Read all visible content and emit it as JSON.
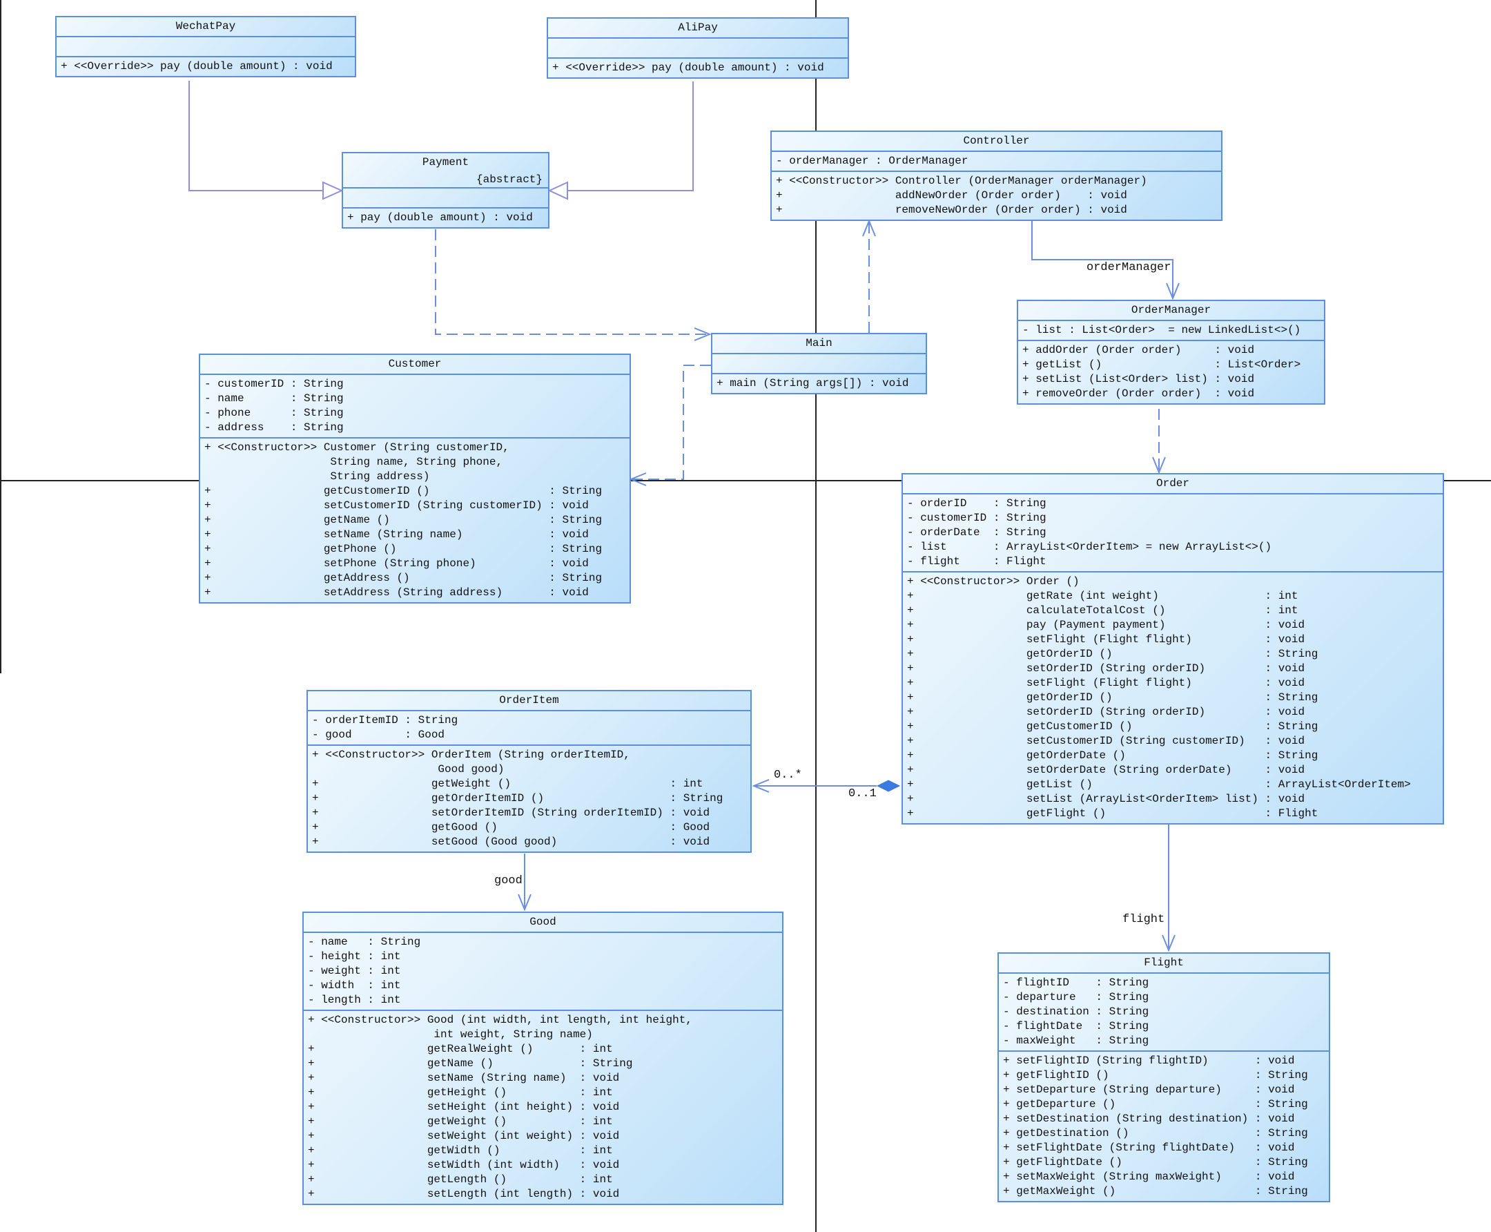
{
  "classes": {
    "wechatpay": {
      "name": "WechatPay",
      "attributes": [],
      "operations": [
        {
          "vis": "+",
          "stereo": "<<Override>>",
          "sig": "pay (double amount)",
          "ret": "void"
        }
      ]
    },
    "alipay": {
      "name": "AliPay",
      "attributes": [],
      "operations": [
        {
          "vis": "+",
          "stereo": "<<Override>>",
          "sig": "pay (double amount)",
          "ret": "void"
        }
      ]
    },
    "payment": {
      "name": "Payment",
      "stereotype": "{abstract}",
      "attributes": [],
      "operations": [
        {
          "vis": "+",
          "stereo": "",
          "sig": "pay (double amount)",
          "ret": "void"
        }
      ]
    },
    "controller": {
      "name": "Controller",
      "attributes": [
        {
          "vis": "-",
          "name": "orderManager",
          "type": "OrderManager"
        }
      ],
      "operations": [
        {
          "vis": "+",
          "stereo": "<<Constructor>>",
          "sig": "Controller (OrderManager orderManager)",
          "ret": ""
        },
        {
          "vis": "+",
          "stereo": "",
          "sig": "addNewOrder (Order order)",
          "ret": "void"
        },
        {
          "vis": "+",
          "stereo": "",
          "sig": "removeNewOrder (Order order)",
          "ret": "void"
        }
      ]
    },
    "ordermanager": {
      "name": "OrderManager",
      "attributes": [
        {
          "vis": "-",
          "name": "list",
          "type": "List<Order>  = new LinkedList<>()"
        }
      ],
      "operations": [
        {
          "vis": "+",
          "stereo": "",
          "sig": "addOrder (Order order)",
          "ret": "void"
        },
        {
          "vis": "+",
          "stereo": "",
          "sig": "getList ()",
          "ret": "List<Order>"
        },
        {
          "vis": "+",
          "stereo": "",
          "sig": "setList (List<Order> list)",
          "ret": "void"
        },
        {
          "vis": "+",
          "stereo": "",
          "sig": "removeOrder (Order order)",
          "ret": "void"
        }
      ]
    },
    "main": {
      "name": "Main",
      "attributes": [],
      "operations": [
        {
          "vis": "+",
          "stereo": "",
          "sig": "main (String args[])",
          "ret": "void"
        }
      ]
    },
    "customer": {
      "name": "Customer",
      "attributes": [
        {
          "vis": "-",
          "name": "customerID",
          "type": "String"
        },
        {
          "vis": "-",
          "name": "name",
          "type": "String"
        },
        {
          "vis": "-",
          "name": "phone",
          "type": "String"
        },
        {
          "vis": "-",
          "name": "address",
          "type": "String"
        }
      ],
      "operations": [
        {
          "vis": "+",
          "stereo": "<<Constructor>>",
          "sig": "Customer (String customerID,",
          "ret": ""
        },
        {
          "vis": "",
          "stereo": "",
          "sig": " String name, String phone,",
          "ret": ""
        },
        {
          "vis": "",
          "stereo": "",
          "sig": " String address)",
          "ret": ""
        },
        {
          "vis": "+",
          "stereo": "",
          "sig": "getCustomerID ()",
          "ret": "String"
        },
        {
          "vis": "+",
          "stereo": "",
          "sig": "setCustomerID (String customerID)",
          "ret": "void"
        },
        {
          "vis": "+",
          "stereo": "",
          "sig": "getName ()",
          "ret": "String"
        },
        {
          "vis": "+",
          "stereo": "",
          "sig": "setName (String name)",
          "ret": "void"
        },
        {
          "vis": "+",
          "stereo": "",
          "sig": "getPhone ()",
          "ret": "String"
        },
        {
          "vis": "+",
          "stereo": "",
          "sig": "setPhone (String phone)",
          "ret": "void"
        },
        {
          "vis": "+",
          "stereo": "",
          "sig": "getAddress ()",
          "ret": "String"
        },
        {
          "vis": "+",
          "stereo": "",
          "sig": "setAddress (String address)",
          "ret": "void"
        }
      ]
    },
    "order": {
      "name": "Order",
      "attributes": [
        {
          "vis": "-",
          "name": "orderID",
          "type": "String"
        },
        {
          "vis": "-",
          "name": "customerID",
          "type": "String"
        },
        {
          "vis": "-",
          "name": "orderDate",
          "type": "String"
        },
        {
          "vis": "-",
          "name": "list",
          "type": "ArrayList<OrderItem> = new ArrayList<>()"
        },
        {
          "vis": "-",
          "name": "flight",
          "type": "Flight"
        }
      ],
      "operations": [
        {
          "vis": "+",
          "stereo": "<<Constructor>>",
          "sig": "Order ()",
          "ret": ""
        },
        {
          "vis": "+",
          "stereo": "",
          "sig": "getRate (int weight)",
          "ret": "int"
        },
        {
          "vis": "+",
          "stereo": "",
          "sig": "calculateTotalCost ()",
          "ret": "int"
        },
        {
          "vis": "+",
          "stereo": "",
          "sig": "pay (Payment payment)",
          "ret": "void"
        },
        {
          "vis": "+",
          "stereo": "",
          "sig": "setFlight (Flight flight)",
          "ret": "void"
        },
        {
          "vis": "+",
          "stereo": "",
          "sig": "getOrderID ()",
          "ret": "String"
        },
        {
          "vis": "+",
          "stereo": "",
          "sig": "setOrderID (String orderID)",
          "ret": "void"
        },
        {
          "vis": "+",
          "stereo": "",
          "sig": "setFlight (Flight flight)",
          "ret": "void"
        },
        {
          "vis": "+",
          "stereo": "",
          "sig": "getOrderID ()",
          "ret": "String"
        },
        {
          "vis": "+",
          "stereo": "",
          "sig": "setOrderID (String orderID)",
          "ret": "void"
        },
        {
          "vis": "+",
          "stereo": "",
          "sig": "getCustomerID ()",
          "ret": "String"
        },
        {
          "vis": "+",
          "stereo": "",
          "sig": "setCustomerID (String customerID)",
          "ret": "void"
        },
        {
          "vis": "+",
          "stereo": "",
          "sig": "getOrderDate ()",
          "ret": "String"
        },
        {
          "vis": "+",
          "stereo": "",
          "sig": "setOrderDate (String orderDate)",
          "ret": "void"
        },
        {
          "vis": "+",
          "stereo": "",
          "sig": "getList ()",
          "ret": "ArrayList<OrderItem>"
        },
        {
          "vis": "+",
          "stereo": "",
          "sig": "setList (ArrayList<OrderItem> list)",
          "ret": "void"
        },
        {
          "vis": "+",
          "stereo": "",
          "sig": "getFlight ()",
          "ret": "Flight"
        }
      ]
    },
    "orderitem": {
      "name": "OrderItem",
      "attributes": [
        {
          "vis": "-",
          "name": "orderItemID",
          "type": "String"
        },
        {
          "vis": "-",
          "name": "good",
          "type": "Good"
        }
      ],
      "operations": [
        {
          "vis": "+",
          "stereo": "<<Constructor>>",
          "sig": "OrderItem (String orderItemID,",
          "ret": ""
        },
        {
          "vis": "",
          "stereo": "",
          "sig": " Good good)",
          "ret": ""
        },
        {
          "vis": "+",
          "stereo": "",
          "sig": "getWeight ()",
          "ret": "int"
        },
        {
          "vis": "+",
          "stereo": "",
          "sig": "getOrderItemID ()",
          "ret": "String"
        },
        {
          "vis": "+",
          "stereo": "",
          "sig": "setOrderItemID (String orderItemID)",
          "ret": "void"
        },
        {
          "vis": "+",
          "stereo": "",
          "sig": "getGood ()",
          "ret": "Good"
        },
        {
          "vis": "+",
          "stereo": "",
          "sig": "setGood (Good good)",
          "ret": "void"
        }
      ]
    },
    "good": {
      "name": "Good",
      "attributes": [
        {
          "vis": "-",
          "name": "name",
          "type": "String"
        },
        {
          "vis": "-",
          "name": "height",
          "type": "int"
        },
        {
          "vis": "-",
          "name": "weight",
          "type": "int"
        },
        {
          "vis": "-",
          "name": "width",
          "type": "int"
        },
        {
          "vis": "-",
          "name": "length",
          "type": "int"
        }
      ],
      "operations": [
        {
          "vis": "+",
          "stereo": "<<Constructor>>",
          "sig": "Good (int width, int length, int height,",
          "ret": ""
        },
        {
          "vis": "",
          "stereo": "",
          "sig": " int weight, String name)",
          "ret": ""
        },
        {
          "vis": "+",
          "stereo": "",
          "sig": "getRealWeight ()",
          "ret": "int"
        },
        {
          "vis": "+",
          "stereo": "",
          "sig": "getName ()",
          "ret": "String"
        },
        {
          "vis": "+",
          "stereo": "",
          "sig": "setName (String name)",
          "ret": "void"
        },
        {
          "vis": "+",
          "stereo": "",
          "sig": "getHeight ()",
          "ret": "int"
        },
        {
          "vis": "+",
          "stereo": "",
          "sig": "setHeight (int height)",
          "ret": "void"
        },
        {
          "vis": "+",
          "stereo": "",
          "sig": "getWeight ()",
          "ret": "int"
        },
        {
          "vis": "+",
          "stereo": "",
          "sig": "setWeight (int weight)",
          "ret": "void"
        },
        {
          "vis": "+",
          "stereo": "",
          "sig": "getWidth ()",
          "ret": "int"
        },
        {
          "vis": "+",
          "stereo": "",
          "sig": "setWidth (int width)",
          "ret": "void"
        },
        {
          "vis": "+",
          "stereo": "",
          "sig": "getLength ()",
          "ret": "int"
        },
        {
          "vis": "+",
          "stereo": "",
          "sig": "setLength (int length)",
          "ret": "void"
        }
      ]
    },
    "flight": {
      "name": "Flight",
      "attributes": [
        {
          "vis": "-",
          "name": "flightID",
          "type": "String"
        },
        {
          "vis": "-",
          "name": "departure",
          "type": "String"
        },
        {
          "vis": "-",
          "name": "destination",
          "type": "String"
        },
        {
          "vis": "-",
          "name": "flightDate",
          "type": "String"
        },
        {
          "vis": "-",
          "name": "maxWeight",
          "type": "String"
        }
      ],
      "operations": [
        {
          "vis": "+",
          "stereo": "",
          "sig": "setFlightID (String flightID)",
          "ret": "void"
        },
        {
          "vis": "+",
          "stereo": "",
          "sig": "getFlightID ()",
          "ret": "String"
        },
        {
          "vis": "+",
          "stereo": "",
          "sig": "setDeparture (String departure)",
          "ret": "void"
        },
        {
          "vis": "+",
          "stereo": "",
          "sig": "getDeparture ()",
          "ret": "String"
        },
        {
          "vis": "+",
          "stereo": "",
          "sig": "setDestination (String destination)",
          "ret": "void"
        },
        {
          "vis": "+",
          "stereo": "",
          "sig": "getDestination ()",
          "ret": "String"
        },
        {
          "vis": "+",
          "stereo": "",
          "sig": "setFlightDate (String flightDate)",
          "ret": "void"
        },
        {
          "vis": "+",
          "stereo": "",
          "sig": "getFlightDate ()",
          "ret": "String"
        },
        {
          "vis": "+",
          "stereo": "",
          "sig": "setMaxWeight (String maxWeight)",
          "ret": "void"
        },
        {
          "vis": "+",
          "stereo": "",
          "sig": "getMaxWeight ()",
          "ret": "String"
        }
      ]
    }
  },
  "labels": {
    "order_manager_role": "orderManager",
    "list_multiplicity_item": "0..*",
    "list_multiplicity_order": "0..1",
    "good_role": "good",
    "flight_role": "flight"
  },
  "colors": {
    "class_border": "#5a8fdc",
    "class_fill": "#d6ecfb",
    "edge": "#6b8fe0",
    "generalization": "#8f8fe0",
    "composition_diamond": "#3b7be0"
  }
}
